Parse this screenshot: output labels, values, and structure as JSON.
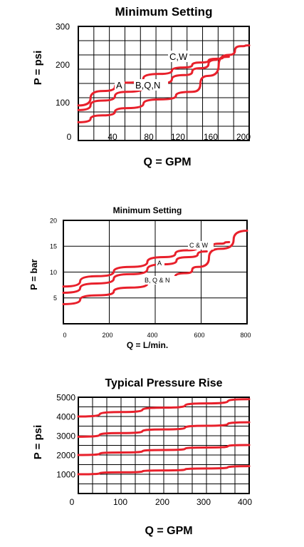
{
  "chart_data": [
    {
      "type": "line",
      "title": "Minimum Setting",
      "xlabel": "Q = GPM",
      "ylabel": "P = psi",
      "xlim": [
        0,
        210
      ],
      "ylim": [
        0,
        300
      ],
      "xticks": [
        "0",
        "40",
        "80",
        "120",
        "160",
        "200"
      ],
      "yticks": [
        "100",
        "200",
        "300"
      ],
      "grid": true,
      "series": [
        {
          "name": "C,W",
          "x": [
            0,
            30,
            60,
            100,
            130,
            150,
            170,
            185
          ],
          "y": [
            92,
            130,
            152,
            175,
            192,
            205,
            215,
            220
          ]
        },
        {
          "name": "A",
          "x": [
            0,
            30,
            60,
            100,
            130,
            150,
            170
          ],
          "y": [
            80,
            105,
            128,
            150,
            172,
            190,
            212
          ]
        },
        {
          "name": "B,Q,N",
          "x": [
            0,
            30,
            60,
            100,
            140,
            160,
            185,
            200,
            210
          ],
          "y": [
            48,
            66,
            85,
            108,
            128,
            170,
            225,
            248,
            250
          ]
        }
      ],
      "annotations": [
        "C,W",
        "A",
        "B,Q,N"
      ]
    },
    {
      "type": "line",
      "title": "Minimum Setting",
      "xlabel": "Q = L/min.",
      "ylabel": "P = bar",
      "xlim": [
        0,
        820
      ],
      "ylim": [
        0,
        20
      ],
      "xticks": [
        "0",
        "200",
        "400",
        "600",
        "800"
      ],
      "yticks": [
        "5",
        "10",
        "15",
        "20"
      ],
      "grid": true,
      "series": [
        {
          "name": "C & W",
          "x": [
            0,
            150,
            300,
            450,
            550,
            640,
            700,
            740
          ],
          "y": [
            7.2,
            9.2,
            11.0,
            12.9,
            14.2,
            15.0,
            15.5,
            15.8
          ]
        },
        {
          "name": "A",
          "x": [
            0,
            150,
            300,
            450,
            560,
            640
          ],
          "y": [
            6.0,
            7.8,
            9.6,
            11.5,
            12.9,
            14.0
          ]
        },
        {
          "name": "B, Q & N",
          "x": [
            0,
            150,
            300,
            450,
            550,
            600,
            700,
            820
          ],
          "y": [
            3.8,
            5.5,
            7.0,
            8.6,
            9.8,
            11.0,
            14.5,
            18.0
          ]
        }
      ],
      "annotations": [
        "C & W",
        "A",
        "B, Q & N"
      ]
    },
    {
      "type": "line",
      "title": "Typical Pressure Rise",
      "xlabel": "Q = GPM",
      "ylabel": "P = psi",
      "xlim": [
        0,
        400
      ],
      "ylim": [
        0,
        5000
      ],
      "xticks": [
        "0",
        "100",
        "200",
        "300",
        "400"
      ],
      "yticks": [
        "1000",
        "2000",
        "3000",
        "4000",
        "5000"
      ],
      "grid": true,
      "series": [
        {
          "x": [
            0,
            100,
            200,
            300,
            400
          ],
          "y": [
            4000,
            4230,
            4460,
            4680,
            4900
          ]
        },
        {
          "x": [
            0,
            100,
            200,
            300,
            400
          ],
          "y": [
            2950,
            3140,
            3330,
            3520,
            3700
          ]
        },
        {
          "x": [
            0,
            100,
            200,
            300,
            400
          ],
          "y": [
            2000,
            2130,
            2260,
            2390,
            2520
          ]
        },
        {
          "x": [
            0,
            100,
            200,
            300,
            400
          ],
          "y": [
            1000,
            1100,
            1200,
            1300,
            1420
          ]
        }
      ]
    }
  ]
}
